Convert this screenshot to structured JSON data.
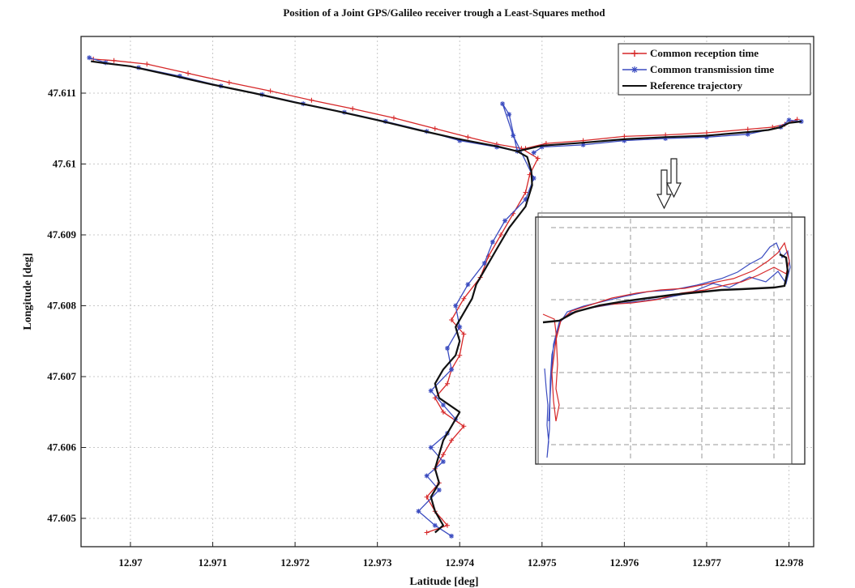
{
  "chart_data": {
    "type": "line",
    "title": "Position of a Joint GPS/Galileo receiver trough a Least-Squares method",
    "xlabel": "Latitude [deg]",
    "ylabel": "Longitude [deg]",
    "xlim": [
      12.9694,
      12.9783
    ],
    "ylim": [
      47.6046,
      47.6118
    ],
    "xticks": [
      "12.97",
      "12.971",
      "12.972",
      "12.973",
      "12.974",
      "12.975",
      "12.976",
      "12.977",
      "12.978"
    ],
    "yticks": [
      "47.605",
      "47.606",
      "47.607",
      "47.608",
      "47.609",
      "47.61",
      "47.611"
    ],
    "grid": true,
    "legend_position": "top-right",
    "series": [
      {
        "name": "Reference trajectory",
        "color": "#111111",
        "marker": "none",
        "x": [
          12.96952,
          12.9697,
          12.97,
          12.9705,
          12.971,
          12.9715,
          12.972,
          12.9725,
          12.973,
          12.9735,
          12.974,
          12.97445,
          12.9747,
          12.97482,
          12.97487,
          12.97488,
          12.9748,
          12.9746,
          12.97445,
          12.9743,
          12.9742,
          12.97415,
          12.97405,
          12.97395,
          12.974,
          12.97395,
          12.9738,
          12.9737,
          12.97375,
          12.974,
          12.9739,
          12.9738,
          12.97375,
          12.9737,
          12.97375,
          12.97365,
          12.9737,
          12.9738,
          12.9737
        ],
        "y": [
          47.61145,
          47.61142,
          47.61138,
          47.61125,
          47.61112,
          47.611,
          47.61087,
          47.61075,
          47.61062,
          47.61048,
          47.61035,
          47.61025,
          47.61018,
          47.6101,
          47.6099,
          47.6097,
          47.6094,
          47.6091,
          47.6088,
          47.6085,
          47.6083,
          47.6081,
          47.6079,
          47.6077,
          47.6075,
          47.6073,
          47.6071,
          47.6069,
          47.6067,
          47.6065,
          47.6063,
          47.6061,
          47.6059,
          47.6057,
          47.6055,
          47.6053,
          47.6051,
          47.6049,
          47.6048
        ]
      },
      {
        "name": "Reference trajectory",
        "color": "#111111",
        "marker": "none",
        "x": [
          12.9747,
          12.975,
          12.9755,
          12.976,
          12.9765,
          12.977,
          12.9775,
          12.97775,
          12.9779,
          12.978,
          12.97815
        ],
        "y": [
          47.61018,
          47.61026,
          47.6103,
          47.61035,
          47.61038,
          47.6104,
          47.61045,
          47.61048,
          47.61052,
          47.61058,
          47.6106
        ]
      },
      {
        "name": "Common reception time",
        "color": "#d62728",
        "marker": "plus",
        "x": [
          12.96955,
          12.9698,
          12.9702,
          12.9707,
          12.9712,
          12.9717,
          12.9722,
          12.9727,
          12.9732,
          12.9737,
          12.9741,
          12.97445,
          12.97475,
          12.97495,
          12.97485,
          12.9748,
          12.97465,
          12.9745,
          12.97435,
          12.97425,
          12.97405,
          12.9739,
          12.97405,
          12.974,
          12.9739,
          12.97385,
          12.9737,
          12.9738,
          12.97405,
          12.9739,
          12.9738,
          12.9737,
          12.97375,
          12.9736,
          12.9737,
          12.97385,
          12.9736
        ],
        "y": [
          47.61148,
          47.61146,
          47.61141,
          47.61128,
          47.61115,
          47.61103,
          47.6109,
          47.61078,
          47.61065,
          47.6105,
          47.61038,
          47.61028,
          47.61022,
          47.61008,
          47.60985,
          47.6096,
          47.6093,
          47.609,
          47.6087,
          47.6084,
          47.6081,
          47.6078,
          47.6076,
          47.6073,
          47.6071,
          47.6069,
          47.6067,
          47.6065,
          47.6063,
          47.6061,
          47.6059,
          47.6057,
          47.6055,
          47.6053,
          47.6051,
          47.6049,
          47.6048
        ]
      },
      {
        "name": "Common reception time",
        "color": "#d62728",
        "marker": "plus",
        "x": [
          12.9748,
          12.97505,
          12.9755,
          12.976,
          12.9765,
          12.977,
          12.9775,
          12.9778,
          12.97795,
          12.9781
        ],
        "y": [
          47.61022,
          47.61029,
          47.61033,
          47.61039,
          47.61041,
          47.61044,
          47.61049,
          47.61052,
          47.61056,
          47.61063
        ]
      },
      {
        "name": "Common transmission time",
        "color": "#3b4cc0",
        "marker": "star",
        "x": [
          12.9695,
          12.9697,
          12.9701,
          12.9706,
          12.9711,
          12.9716,
          12.9721,
          12.9726,
          12.9731,
          12.9736,
          12.974,
          12.97445,
          12.9747,
          12.9746,
          12.97452,
          12.97465,
          12.9749,
          12.9748,
          12.97455,
          12.9744,
          12.9743,
          12.9741,
          12.97395,
          12.974,
          12.97385,
          12.9739,
          12.97365,
          12.9738,
          12.97395,
          12.97385,
          12.97365,
          12.9738,
          12.9736,
          12.97375,
          12.9735,
          12.9737,
          12.9739
        ],
        "y": [
          47.6115,
          47.61143,
          47.61136,
          47.61124,
          47.6111,
          47.61098,
          47.61085,
          47.61073,
          47.6106,
          47.61046,
          47.61033,
          47.61024,
          47.61018,
          47.6107,
          47.61085,
          47.6104,
          47.6098,
          47.6095,
          47.6092,
          47.6089,
          47.6086,
          47.6083,
          47.608,
          47.6077,
          47.6074,
          47.6071,
          47.6068,
          47.6066,
          47.6064,
          47.6062,
          47.606,
          47.6058,
          47.6056,
          47.6054,
          47.6051,
          47.6049,
          47.60475
        ]
      },
      {
        "name": "Common transmission time",
        "color": "#3b4cc0",
        "marker": "star",
        "x": [
          12.9749,
          12.975,
          12.9755,
          12.976,
          12.9765,
          12.977,
          12.9775,
          12.9779,
          12.978,
          12.97815
        ],
        "y": [
          47.61016,
          47.61024,
          47.61027,
          47.61033,
          47.61036,
          47.61038,
          47.61042,
          47.61052,
          47.61062,
          47.6106
        ]
      }
    ],
    "legend": [
      "Common reception time",
      "Common transmission time",
      "Reference trajectory"
    ]
  }
}
